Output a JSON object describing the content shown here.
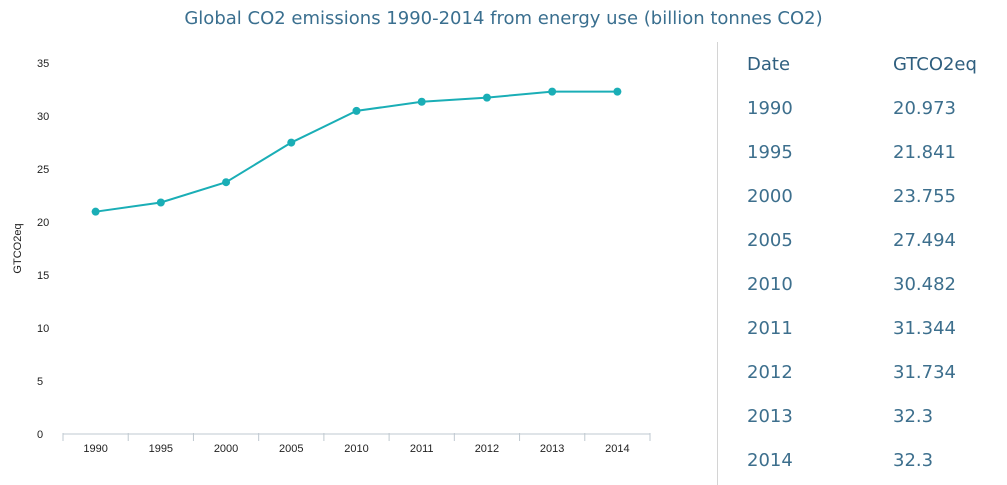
{
  "title": "Global CO2 emissions 1990-2014 from energy use (billion tonnes CO2)",
  "chart_data": {
    "type": "line",
    "categories": [
      "1990",
      "1995",
      "2000",
      "2005",
      "2010",
      "2011",
      "2012",
      "2013",
      "2014"
    ],
    "values": [
      20.973,
      21.841,
      23.755,
      27.494,
      30.482,
      31.344,
      31.734,
      32.3,
      32.3
    ],
    "ylabel": "GTCO2eq",
    "xlabel": "",
    "ylim": [
      0,
      35
    ],
    "yticks": [
      0,
      5,
      10,
      15,
      20,
      25,
      30,
      35
    ],
    "grid": false,
    "line_color": "#1aaeb6"
  },
  "table": {
    "headers": [
      "Date",
      "GTCO2eq"
    ],
    "rows": [
      [
        "1990",
        "20.973"
      ],
      [
        "1995",
        "21.841"
      ],
      [
        "2000",
        "23.755"
      ],
      [
        "2005",
        "27.494"
      ],
      [
        "2010",
        "30.482"
      ],
      [
        "2011",
        "31.344"
      ],
      [
        "2012",
        "31.734"
      ],
      [
        "2013",
        "32.3"
      ],
      [
        "2014",
        "32.3"
      ]
    ]
  }
}
